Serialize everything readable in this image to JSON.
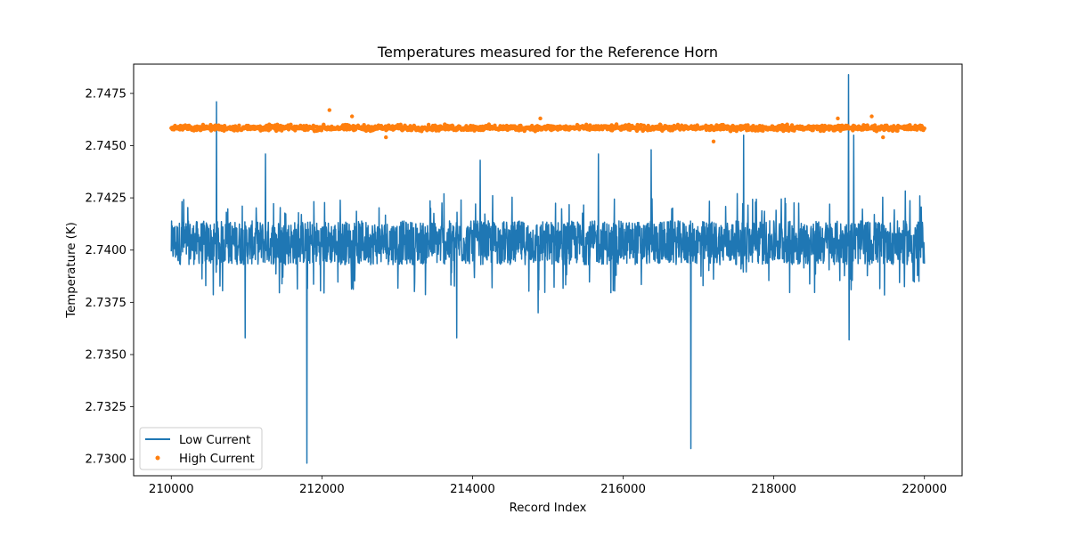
{
  "chart_data": {
    "type": "line+scatter",
    "title": "Temperatures measured for the Reference Horn",
    "xlabel": "Record Index",
    "ylabel": "Temperature (K)",
    "xlim": [
      209500,
      220500
    ],
    "ylim": [
      2.7292,
      2.7489
    ],
    "x_ticks": [
      210000,
      212000,
      214000,
      216000,
      218000,
      220000
    ],
    "x_tick_labels": [
      "210000",
      "212000",
      "214000",
      "216000",
      "218000",
      "220000"
    ],
    "y_ticks": [
      2.73,
      2.7325,
      2.735,
      2.7375,
      2.74,
      2.7425,
      2.745,
      2.7475
    ],
    "y_tick_labels": [
      "2.7300",
      "2.7325",
      "2.7350",
      "2.7375",
      "2.7400",
      "2.7425",
      "2.7450",
      "2.7475"
    ],
    "legend_position": "lower-left",
    "series": [
      {
        "name": "Low Current",
        "kind": "line",
        "color": "#1f77b4",
        "x_range": [
          210000,
          220000
        ],
        "band_low": 2.7393,
        "band_high": 2.7414,
        "outlier_spikes": [
          {
            "x": 210600,
            "y": 2.7471
          },
          {
            "x": 210980,
            "y": 2.7358
          },
          {
            "x": 211250,
            "y": 2.7446
          },
          {
            "x": 211800,
            "y": 2.7298
          },
          {
            "x": 213790,
            "y": 2.7358
          },
          {
            "x": 214100,
            "y": 2.7443
          },
          {
            "x": 214870,
            "y": 2.737
          },
          {
            "x": 215670,
            "y": 2.7446
          },
          {
            "x": 216370,
            "y": 2.7448
          },
          {
            "x": 216900,
            "y": 2.7305
          },
          {
            "x": 217600,
            "y": 2.7455
          },
          {
            "x": 218990,
            "y": 2.7484
          },
          {
            "x": 219000,
            "y": 2.7357
          },
          {
            "x": 219060,
            "y": 2.7455
          }
        ]
      },
      {
        "name": "High Current",
        "kind": "scatter",
        "color": "#ff7f0e",
        "x_range": [
          210000,
          220000
        ],
        "center": 2.74585,
        "spread": 0.0002,
        "outlier_points": [
          {
            "x": 212100,
            "y": 2.7467
          },
          {
            "x": 212400,
            "y": 2.7464
          },
          {
            "x": 212850,
            "y": 2.7454
          },
          {
            "x": 214900,
            "y": 2.7463
          },
          {
            "x": 217200,
            "y": 2.7452
          },
          {
            "x": 218850,
            "y": 2.7463
          },
          {
            "x": 219300,
            "y": 2.7464
          },
          {
            "x": 219450,
            "y": 2.7454
          }
        ]
      }
    ]
  }
}
